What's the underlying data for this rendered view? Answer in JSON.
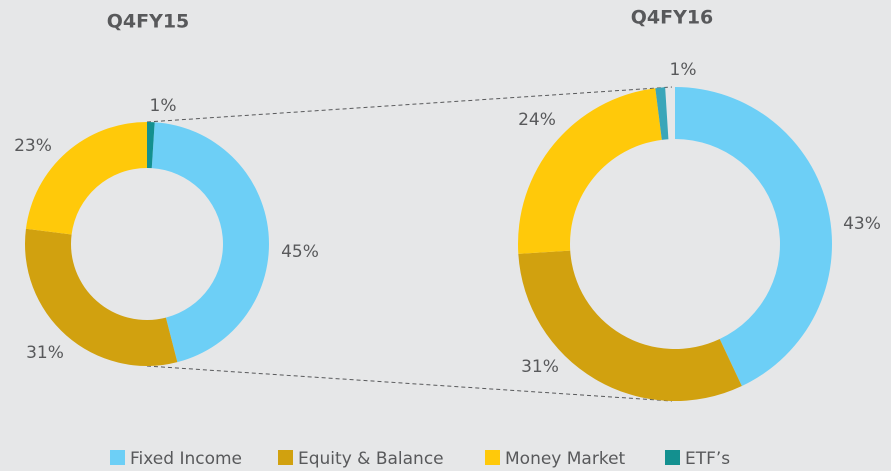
{
  "chart_data": [
    {
      "type": "pie",
      "title": "Q4FY15",
      "categories": [
        "Fixed Income",
        "Equity & Balance",
        "Money Market",
        "ETF’s"
      ],
      "values": [
        45,
        31,
        23,
        1
      ],
      "value_labels": [
        "45%",
        "31%",
        "23%",
        "1%"
      ],
      "colors": [
        "#6dcff6",
        "#d1a10f",
        "#ffc90a",
        "#13908f"
      ]
    },
    {
      "type": "pie",
      "title": "Q4FY16",
      "categories": [
        "Fixed Income",
        "Equity & Balance",
        "Money Market",
        "ETF’s"
      ],
      "values": [
        43,
        31,
        24,
        1
      ],
      "value_labels": [
        "43%",
        "31%",
        "24%",
        "1%"
      ],
      "colors": [
        "#6dcff6",
        "#d1a10f",
        "#ffc90a",
        "#3aa6b9"
      ]
    }
  ]
}
